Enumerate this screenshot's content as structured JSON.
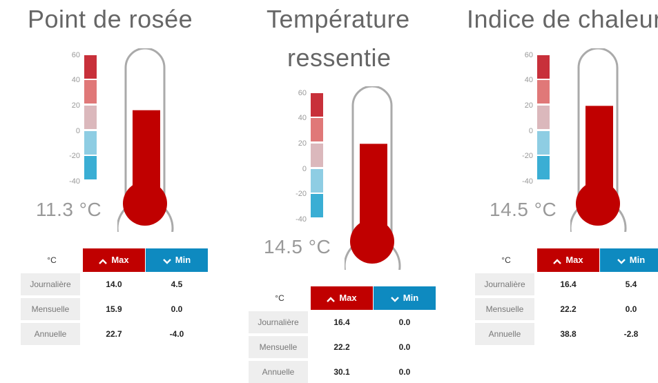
{
  "panels": [
    {
      "title": "Point de rosée",
      "title_line2": "",
      "reading": "11.3 °C",
      "scale_ticks": [
        "60",
        "40",
        "20",
        "0",
        "-20",
        "-40"
      ],
      "fill_level": 0.43,
      "table": {
        "unit": "°C",
        "max_label": "Max",
        "min_label": "Min",
        "rows": [
          {
            "label": "Journalière",
            "max": "14.0",
            "min": "4.5"
          },
          {
            "label": "Mensuelle",
            "max": "15.9",
            "min": "0.0"
          },
          {
            "label": "Annuelle",
            "max": "22.7",
            "min": "-4.0"
          }
        ]
      }
    },
    {
      "title": "Température",
      "title_line2": "ressentie",
      "reading": "14.5 °C",
      "scale_ticks": [
        "60",
        "40",
        "20",
        "0",
        "-20",
        "-40"
      ],
      "fill_level": 0.46,
      "table": {
        "unit": "°C",
        "max_label": "Max",
        "min_label": "Min",
        "rows": [
          {
            "label": "Journalière",
            "max": "16.4",
            "min": "0.0"
          },
          {
            "label": "Mensuelle",
            "max": "22.2",
            "min": "0.0"
          },
          {
            "label": "Annuelle",
            "max": "30.1",
            "min": "0.0"
          }
        ]
      }
    },
    {
      "title": "Indice de chaleur",
      "title_line2": "",
      "reading": "14.5 °C",
      "scale_ticks": [
        "60",
        "40",
        "20",
        "0",
        "-20",
        "-40"
      ],
      "fill_level": 0.46,
      "table": {
        "unit": "°C",
        "max_label": "Max",
        "min_label": "Min",
        "rows": [
          {
            "label": "Journalière",
            "max": "16.4",
            "min": "5.4"
          },
          {
            "label": "Mensuelle",
            "max": "22.2",
            "min": "0.0"
          },
          {
            "label": "Annuelle",
            "max": "38.8",
            "min": "-2.8"
          }
        ]
      }
    }
  ],
  "colors": {
    "mercury": "#c00000",
    "max_button": "#c00000",
    "min_button": "#0e8ac0",
    "scale_segments": [
      "#c8303a",
      "#e07878",
      "#dbb8bc",
      "#8ecde3",
      "#3aaed4"
    ]
  }
}
